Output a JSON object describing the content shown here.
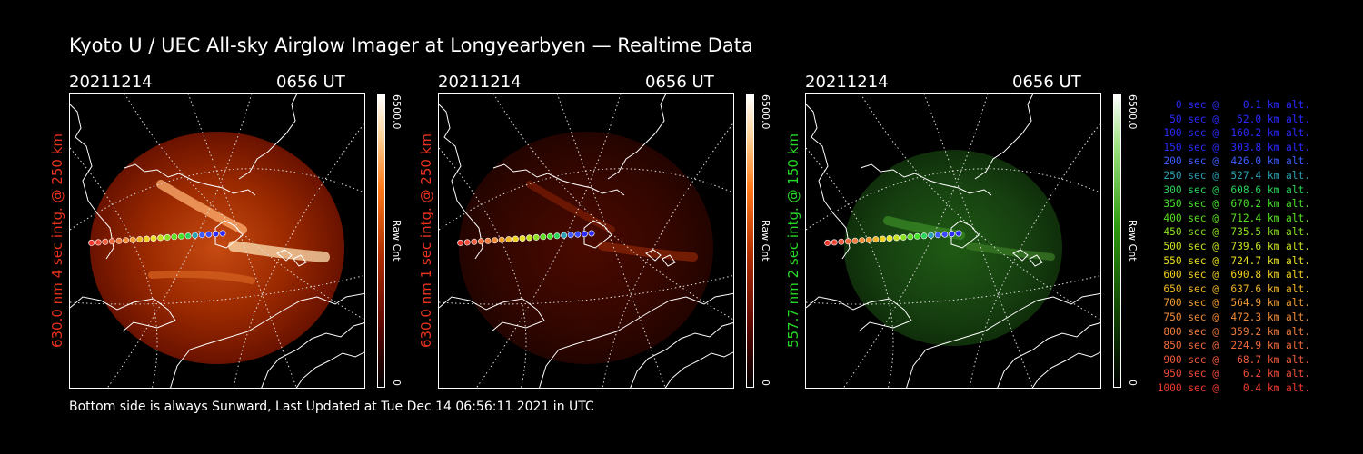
{
  "header": {
    "title": "Kyoto U / UEC All-sky Airglow Imager at Longyearbyen — Realtime Data"
  },
  "footer": {
    "text": "Bottom side is always Sunward, Last Updated at Tue Dec 14 06:56:11 2021 in UTC"
  },
  "panels": [
    {
      "date": "20211214",
      "time": "0656 UT",
      "ylabel": "630.0 nm 4 sec intg. @ 250 km",
      "ylabel_color": "#e8321e",
      "cbar_max": "6500.0",
      "cbar_min": "0",
      "cbar_unit": "Raw Cnt"
    },
    {
      "date": "20211214",
      "time": "0656 UT",
      "ylabel": "630.0 nm 1 sec intg. @ 250 km",
      "ylabel_color": "#e8321e",
      "cbar_max": "6500.0",
      "cbar_min": "0",
      "cbar_unit": "Raw Cnt"
    },
    {
      "date": "20211214",
      "time": "0656 UT",
      "ylabel": "557.7 nm 2 sec intg. @ 150 km",
      "ylabel_color": "#28d828",
      "cbar_max": "6500.0",
      "cbar_min": "0",
      "cbar_unit": "Raw Cnt"
    }
  ],
  "legend": [
    {
      "text": "0 sec @    0.1 km alt.",
      "color": "#2a2aff"
    },
    {
      "text": "50 sec @   52.0 km alt.",
      "color": "#2a2aff"
    },
    {
      "text": "100 sec @  160.2 km alt.",
      "color": "#2a2aff"
    },
    {
      "text": "150 sec @  303.8 km alt.",
      "color": "#2a2aff"
    },
    {
      "text": "200 sec @  426.0 km alt.",
      "color": "#3c5cff"
    },
    {
      "text": "250 sec @  527.4 km alt.",
      "color": "#2aa0b4"
    },
    {
      "text": "300 sec @  608.6 km alt.",
      "color": "#2ad25a"
    },
    {
      "text": "350 sec @  670.2 km alt.",
      "color": "#46e028"
    },
    {
      "text": "400 sec @  712.4 km alt.",
      "color": "#58e020"
    },
    {
      "text": "450 sec @  735.5 km alt.",
      "color": "#8ae020"
    },
    {
      "text": "500 sec @  739.6 km alt.",
      "color": "#c8e020"
    },
    {
      "text": "550 sec @  724.7 km alt.",
      "color": "#e8e020"
    },
    {
      "text": "600 sec @  690.8 km alt.",
      "color": "#f0d020"
    },
    {
      "text": "650 sec @  637.6 km alt.",
      "color": "#f0b428"
    },
    {
      "text": "700 sec @  564.9 km alt.",
      "color": "#f09a30"
    },
    {
      "text": "750 sec @  472.3 km alt.",
      "color": "#f08a38"
    },
    {
      "text": "800 sec @  359.2 km alt.",
      "color": "#f07a3c"
    },
    {
      "text": "850 sec @  224.9 km alt.",
      "color": "#f06a3c"
    },
    {
      "text": "900 sec @   68.7 km alt.",
      "color": "#f05a3c"
    },
    {
      "text": "950 sec @    6.2 km alt.",
      "color": "#f04a38"
    },
    {
      "text": "1000 sec @    0.4 km alt.",
      "color": "#f03a30"
    }
  ]
}
